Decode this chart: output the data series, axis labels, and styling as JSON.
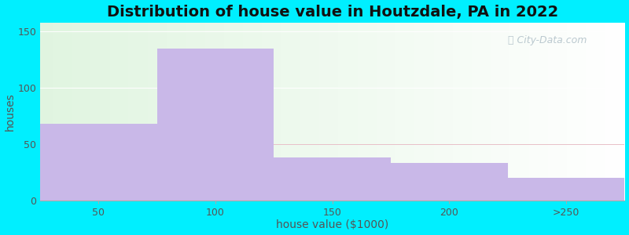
{
  "title": "Distribution of house value in Houtzdale, PA in 2022",
  "xlabel": "house value ($1000)",
  "ylabel": "houses",
  "bar_values": [
    68,
    135,
    38,
    33,
    20
  ],
  "bar_color": "#c9b8e8",
  "bar_positions": [
    0,
    1,
    2,
    3,
    4
  ],
  "bar_width": 1.0,
  "xtick_positions": [
    0.5,
    1.5,
    2.5,
    3.5,
    4.5
  ],
  "xtick_labels": [
    "50",
    "100",
    "150",
    "200",
    ">250"
  ],
  "yticks": [
    0,
    50,
    100,
    150
  ],
  "ylim": [
    0,
    158
  ],
  "xlim": [
    0,
    5
  ],
  "background_outer": "#00efff",
  "title_fontsize": 14,
  "axis_label_fontsize": 10,
  "tick_fontsize": 9,
  "watermark": "City-Data.com"
}
